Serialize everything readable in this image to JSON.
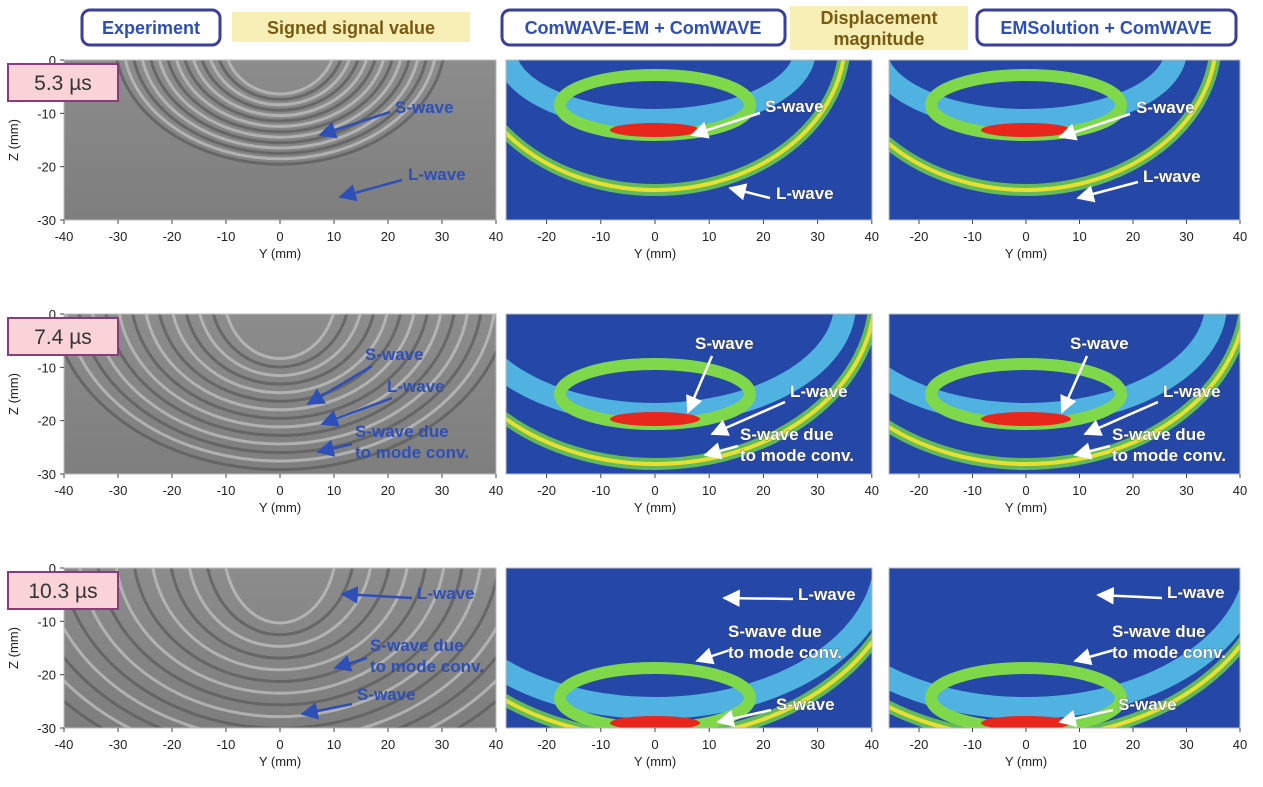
{
  "headers": {
    "experiment": "Experiment",
    "signed": "Signed signal value",
    "comwave": "ComWAVE-EM + ComWAVE",
    "displacement": [
      "Displacement",
      "magnitude"
    ],
    "emsolution": "EMSolution + ComWAVE"
  },
  "axes": {
    "x_label": "Y (mm)",
    "z_label": "Z (mm)",
    "experiment_xticks": [
      -40,
      -30,
      -20,
      -10,
      0,
      10,
      20,
      30,
      40
    ],
    "simulation_xticks": [
      -20,
      -10,
      0,
      10,
      20,
      30,
      40
    ],
    "zticks": [
      0,
      -10,
      -20,
      -30
    ]
  },
  "rows": [
    {
      "time": "5.3 µs",
      "panels": [
        [
          [
            "S-wave"
          ],
          [
            "L-wave"
          ]
        ],
        [
          [
            "S-wave"
          ],
          [
            "L-wave"
          ]
        ],
        [
          [
            "S-wave"
          ],
          [
            "L-wave"
          ]
        ]
      ]
    },
    {
      "time": "7.4 µs",
      "panels": [
        [
          [
            "S-wave"
          ],
          [
            "L-wave"
          ],
          [
            "S-wave due",
            "to mode conv."
          ]
        ],
        [
          [
            "S-wave"
          ],
          [
            "L-wave"
          ],
          [
            "S-wave due",
            "to mode conv."
          ]
        ],
        [
          [
            "S-wave"
          ],
          [
            "L-wave"
          ],
          [
            "S-wave due",
            "to mode conv."
          ]
        ]
      ]
    },
    {
      "time": "10.3 µs",
      "panels": [
        [
          [
            "L-wave"
          ],
          [
            "S-wave due",
            "to mode conv."
          ],
          [
            "S-wave"
          ]
        ],
        [
          [
            "L-wave"
          ],
          [
            "S-wave due",
            "to mode conv."
          ],
          [
            "S-wave"
          ]
        ],
        [
          [
            "L-wave"
          ],
          [
            "S-wave due",
            "to mode conv."
          ],
          [
            "S-wave"
          ]
        ]
      ]
    }
  ]
}
